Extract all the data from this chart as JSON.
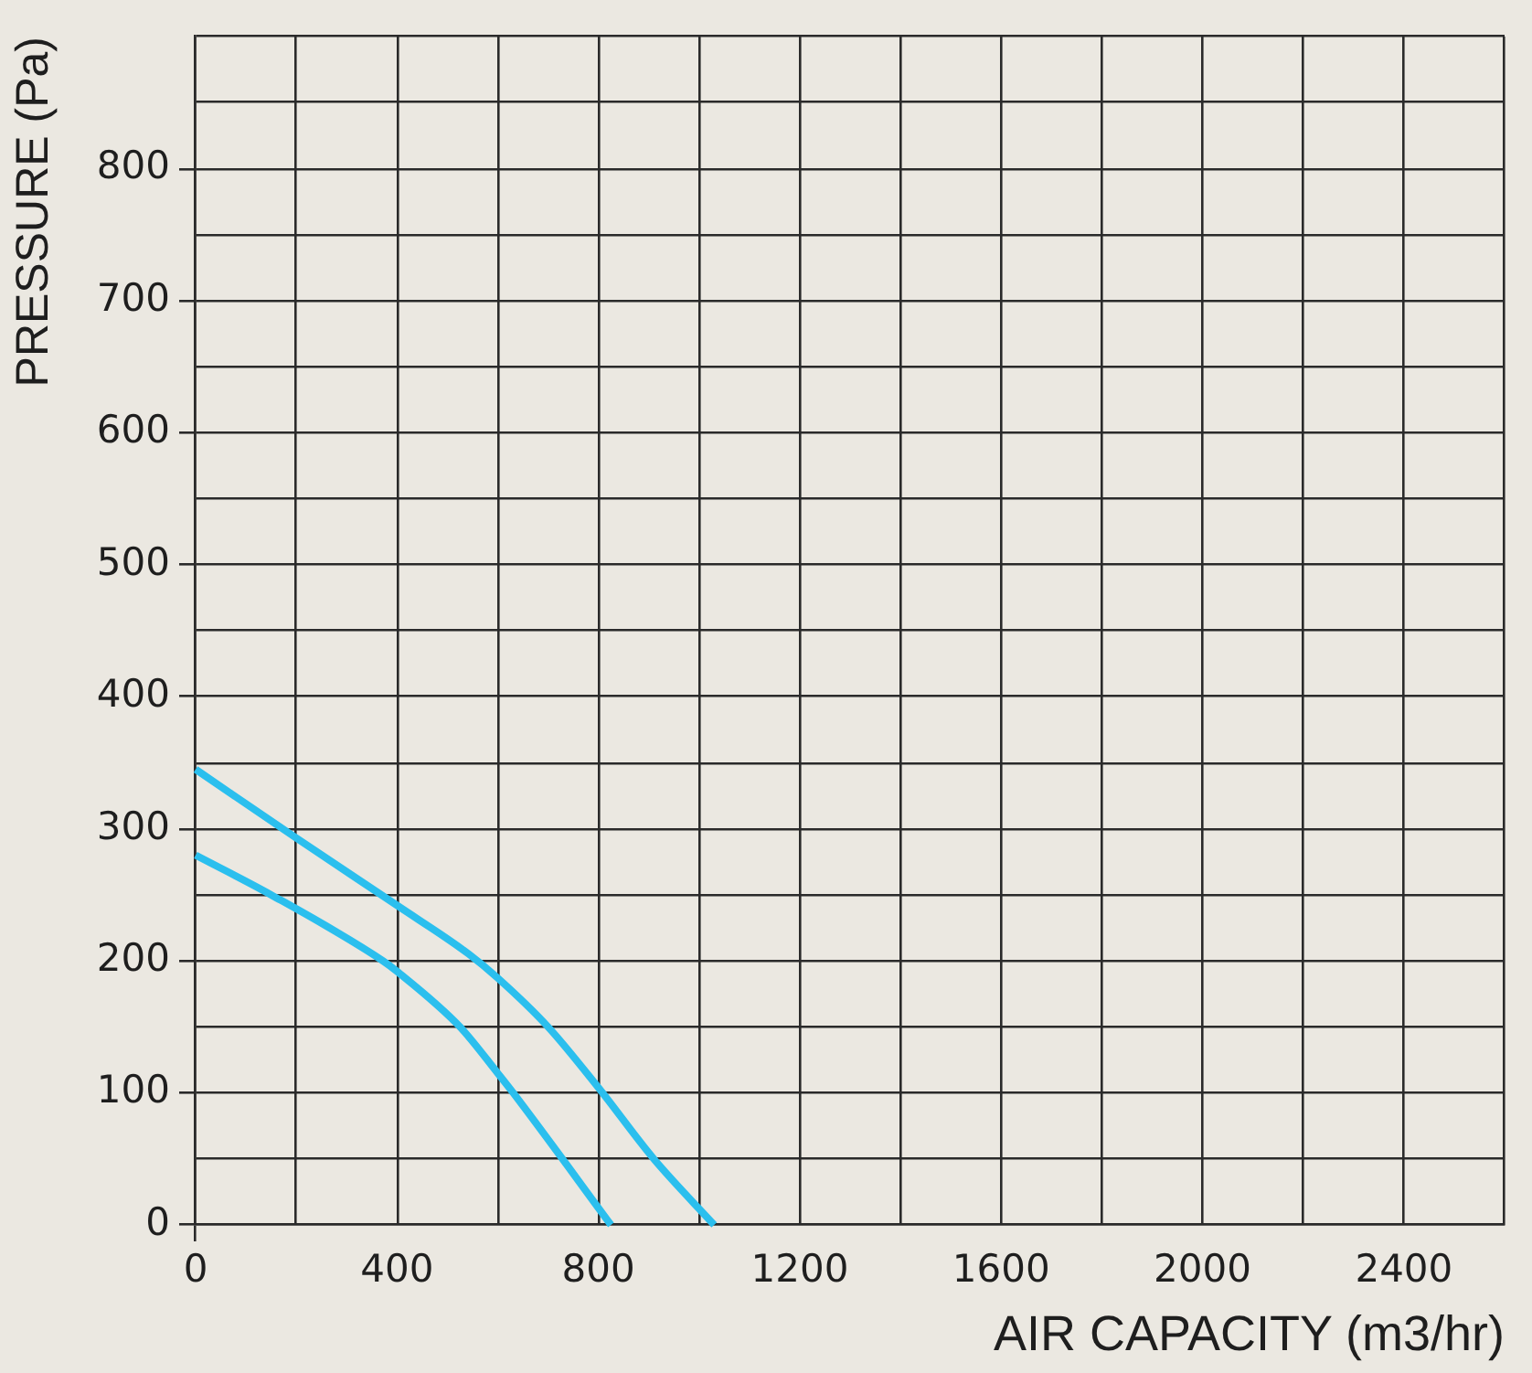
{
  "chart_data": {
    "type": "line",
    "xlabel": "AIR CAPACITY (m3/hr)",
    "ylabel": "PRESSURE (Pa)",
    "xlim": [
      0,
      2600
    ],
    "ylim": [
      0,
      900
    ],
    "xticks": [
      0,
      {
        "value": 200,
        "label": null
      },
      400,
      {
        "value": 600,
        "label": null
      },
      800,
      {
        "value": 1000,
        "label": null
      },
      1200,
      {
        "value": 1400,
        "label": null
      },
      1600,
      {
        "value": 1800,
        "label": null
      },
      2000,
      {
        "value": 2200,
        "label": null
      },
      2400,
      {
        "value": 2600,
        "label": null
      }
    ],
    "yticks": [
      0,
      {
        "value": 50,
        "label": null
      },
      100,
      {
        "value": 150,
        "label": null
      },
      200,
      {
        "value": 250,
        "label": null
      },
      300,
      {
        "value": 350,
        "label": null
      },
      400,
      {
        "value": 450,
        "label": null
      },
      500,
      {
        "value": 550,
        "label": null
      },
      600,
      {
        "value": 650,
        "label": null
      },
      700,
      {
        "value": 750,
        "label": null
      },
      800,
      {
        "value": 850,
        "label": null
      },
      {
        "value": 900,
        "label": null
      }
    ],
    "grid": true,
    "series": [
      {
        "color": "#2bbfee",
        "x": [
          0,
          200,
          400,
          543,
          600,
          700,
          800,
          910,
          1030
        ],
        "values": [
          345,
          293,
          242,
          205,
          187,
          150,
          104,
          50,
          0
        ]
      },
      {
        "color": "#2bbfee",
        "x": [
          0,
          150,
          372,
          400,
          525,
          600,
          631,
          825
        ],
        "values": [
          280,
          250,
          200,
          192,
          150,
          115,
          100,
          0
        ]
      }
    ]
  }
}
